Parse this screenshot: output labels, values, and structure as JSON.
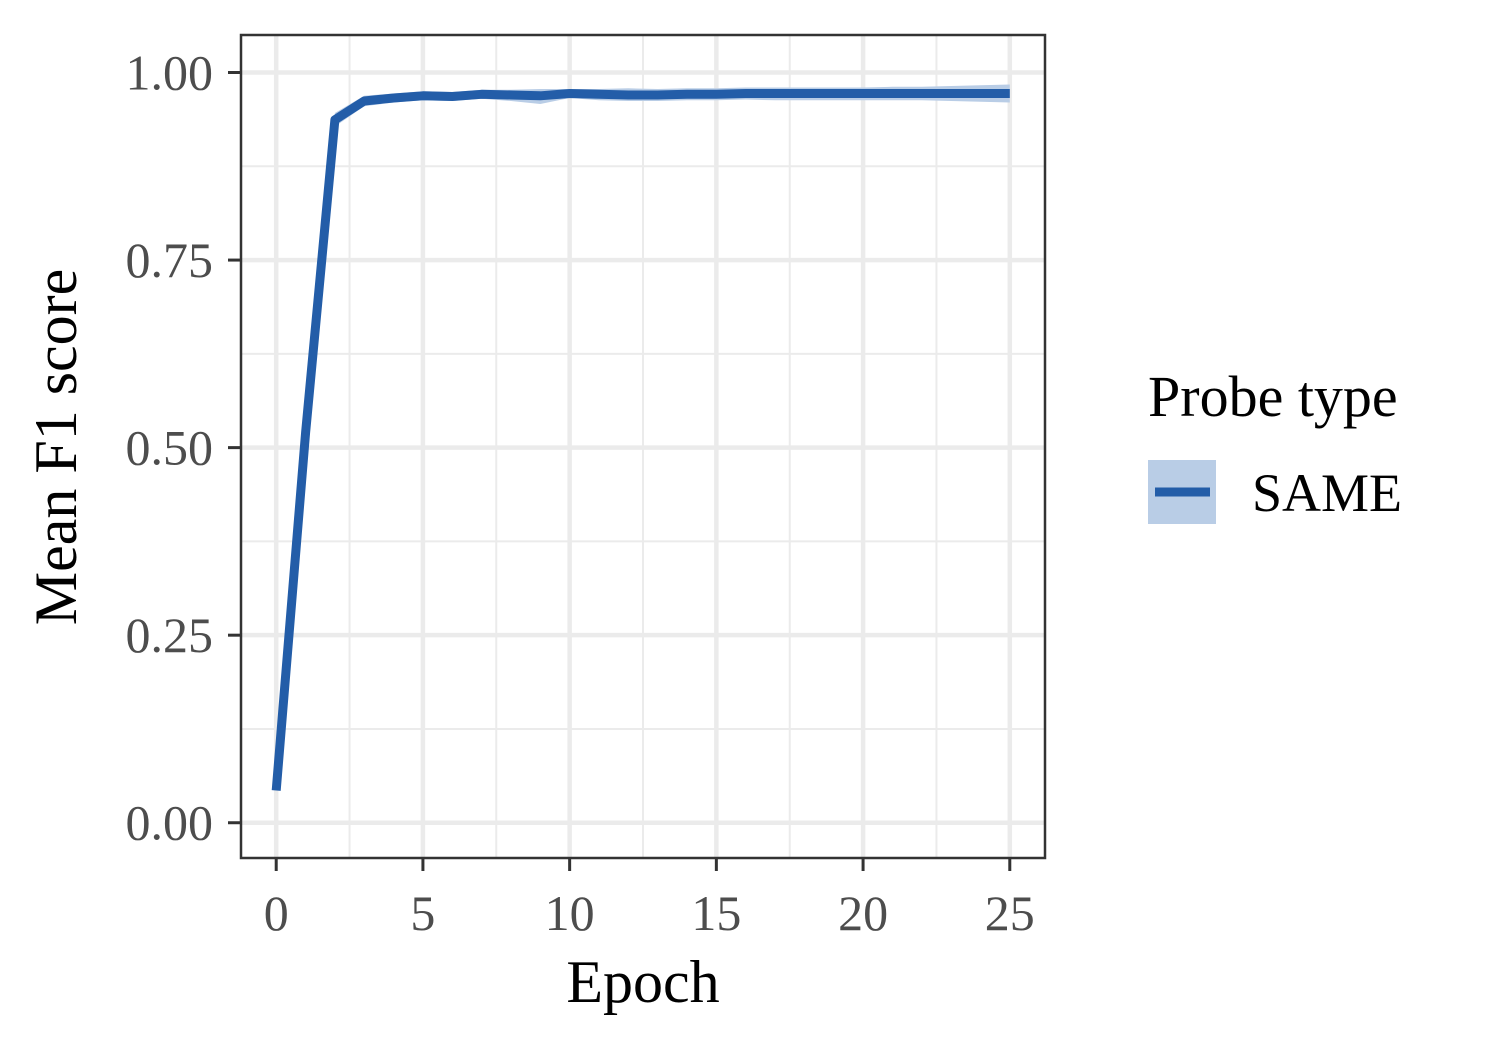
{
  "chart_data": {
    "type": "line",
    "title": "",
    "xlabel": "Epoch",
    "ylabel": "Mean F1 score",
    "xlim": [
      -1.2,
      26.2
    ],
    "ylim": [
      -0.047,
      1.05
    ],
    "x_ticks": [
      0,
      5,
      10,
      15,
      20,
      25
    ],
    "x_tick_labels": [
      "0",
      "5",
      "10",
      "15",
      "20",
      "25"
    ],
    "y_ticks": [
      0,
      0.25,
      0.5,
      0.75,
      1
    ],
    "y_tick_labels": [
      "0.00",
      "0.25",
      "0.50",
      "0.75",
      "1.00"
    ],
    "grid": true,
    "legend": {
      "title": "Probe type",
      "position": "right",
      "entries": [
        "SAME"
      ]
    },
    "series": [
      {
        "name": "SAME",
        "color": "#235da8",
        "band_color": "#b9cde6",
        "x": [
          0,
          1,
          2,
          3,
          4,
          5,
          6,
          7,
          8,
          9,
          10,
          11,
          12,
          13,
          14,
          15,
          16,
          17,
          18,
          19,
          20,
          21,
          22,
          23,
          24,
          25
        ],
        "y": [
          0.043,
          0.52,
          0.937,
          0.962,
          0.966,
          0.969,
          0.968,
          0.971,
          0.97,
          0.969,
          0.972,
          0.971,
          0.97,
          0.97,
          0.971,
          0.971,
          0.972,
          0.972,
          0.972,
          0.972,
          0.972,
          0.972,
          0.972,
          0.972,
          0.972,
          0.972
        ],
        "y_lower": [
          0.043,
          0.515,
          0.928,
          0.955,
          0.96,
          0.963,
          0.962,
          0.965,
          0.962,
          0.958,
          0.966,
          0.963,
          0.962,
          0.962,
          0.963,
          0.963,
          0.964,
          0.963,
          0.963,
          0.963,
          0.963,
          0.963,
          0.963,
          0.962,
          0.961,
          0.96
        ],
        "y_upper": [
          0.043,
          0.525,
          0.946,
          0.969,
          0.972,
          0.975,
          0.974,
          0.977,
          0.977,
          0.978,
          0.978,
          0.978,
          0.979,
          0.978,
          0.979,
          0.979,
          0.98,
          0.98,
          0.98,
          0.98,
          0.98,
          0.981,
          0.981,
          0.982,
          0.983,
          0.984
        ]
      }
    ]
  }
}
